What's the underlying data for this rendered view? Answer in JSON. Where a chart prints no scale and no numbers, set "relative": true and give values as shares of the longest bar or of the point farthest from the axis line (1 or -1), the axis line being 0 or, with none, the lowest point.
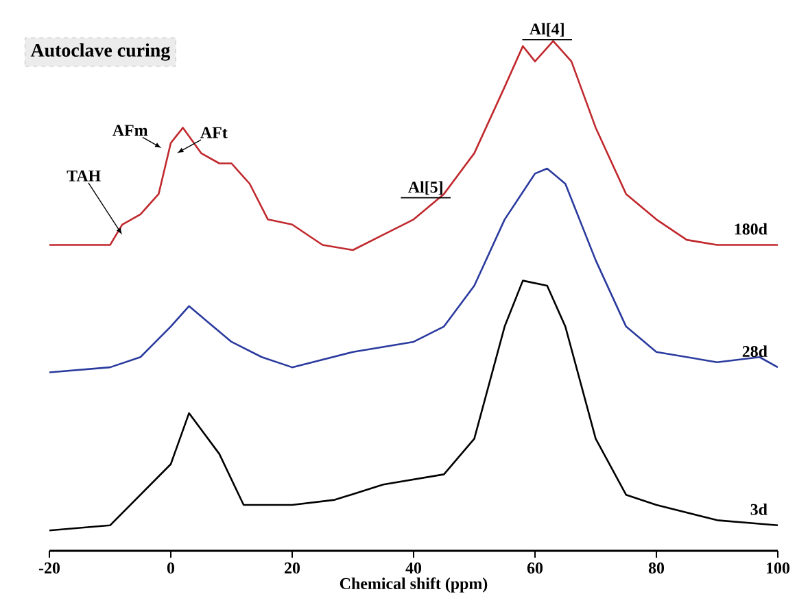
{
  "chart_data": {
    "type": "line",
    "title": "Autoclave curing",
    "xlabel": "Chemical shift (ppm)",
    "relative": true,
    "xlim": [
      -20,
      100
    ],
    "xticks": [
      -20,
      0,
      20,
      40,
      60,
      80,
      100
    ],
    "grid": false,
    "marker": "none",
    "line_style": "solid",
    "series": [
      {
        "name": "3d",
        "color": "#000000",
        "x": [
          -20,
          -10,
          0,
          3,
          8,
          12,
          20,
          27,
          35,
          45,
          50,
          55,
          58,
          62,
          65,
          70,
          75,
          80,
          90,
          100
        ],
        "values": [
          0.04,
          0.05,
          0.17,
          0.27,
          0.19,
          0.09,
          0.09,
          0.1,
          0.13,
          0.15,
          0.22,
          0.44,
          0.53,
          0.52,
          0.44,
          0.22,
          0.11,
          0.09,
          0.06,
          0.05
        ]
      },
      {
        "name": "28d",
        "color": "#2a3a9e",
        "x": [
          -20,
          -10,
          -5,
          0,
          3,
          6,
          10,
          15,
          20,
          30,
          40,
          45,
          50,
          55,
          60,
          62,
          65,
          70,
          75,
          80,
          90,
          97,
          100
        ],
        "values": [
          0.35,
          0.36,
          0.38,
          0.44,
          0.48,
          0.45,
          0.41,
          0.38,
          0.36,
          0.39,
          0.41,
          0.44,
          0.52,
          0.65,
          0.74,
          0.75,
          0.72,
          0.57,
          0.44,
          0.39,
          0.37,
          0.38,
          0.36
        ]
      },
      {
        "name": "180d",
        "color": "#c0282d",
        "x": [
          -20,
          -15,
          -10,
          -8,
          -5,
          -2,
          0,
          2,
          5,
          8,
          10,
          13,
          16,
          20,
          25,
          30,
          35,
          40,
          45,
          50,
          55,
          58,
          60,
          63,
          66,
          70,
          75,
          80,
          85,
          90,
          95,
          100
        ],
        "values": [
          0.6,
          0.6,
          0.6,
          0.64,
          0.66,
          0.7,
          0.8,
          0.83,
          0.78,
          0.76,
          0.76,
          0.72,
          0.65,
          0.64,
          0.6,
          0.59,
          0.62,
          0.65,
          0.7,
          0.78,
          0.91,
          0.99,
          0.96,
          1.0,
          0.96,
          0.83,
          0.7,
          0.65,
          0.61,
          0.6,
          0.6,
          0.6
        ]
      }
    ],
    "annotations": [
      "TAH",
      "AFm",
      "AFt",
      "Al[5]",
      "Al[4]"
    ]
  }
}
